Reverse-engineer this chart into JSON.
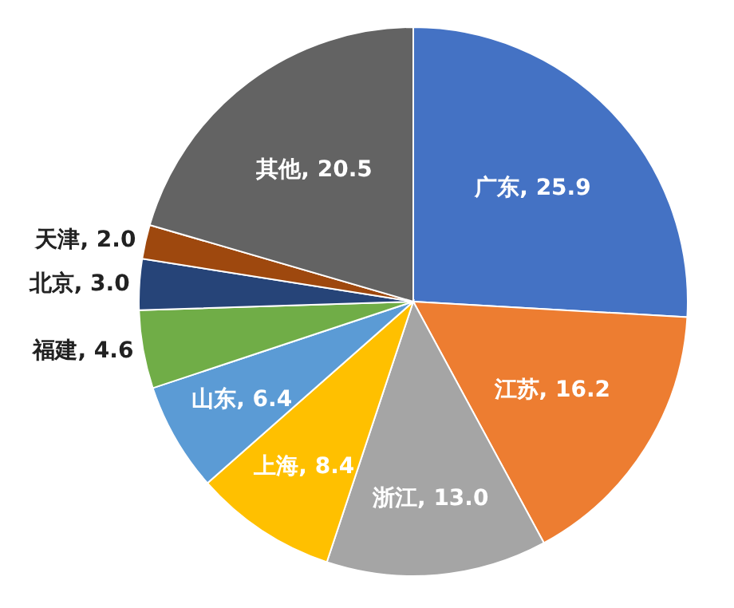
{
  "chart_data": {
    "type": "pie",
    "categories": [
      "广东",
      "江苏",
      "浙江",
      "上海",
      "山东",
      "福建",
      "北京",
      "天津",
      "其他"
    ],
    "values": [
      25.9,
      16.2,
      13.0,
      8.4,
      6.4,
      4.6,
      3.0,
      2.0,
      20.5
    ],
    "value_labels": [
      "25.9",
      "16.2",
      "13.0",
      "8.4",
      "6.4",
      "4.6",
      "3.0",
      "2.0",
      "20.5"
    ],
    "colors": [
      "#4472c4",
      "#ed7d31",
      "#a5a5a5",
      "#ffc000",
      "#5b9bd5",
      "#70ad47",
      "#264478",
      "#9e480e",
      "#636363"
    ]
  }
}
